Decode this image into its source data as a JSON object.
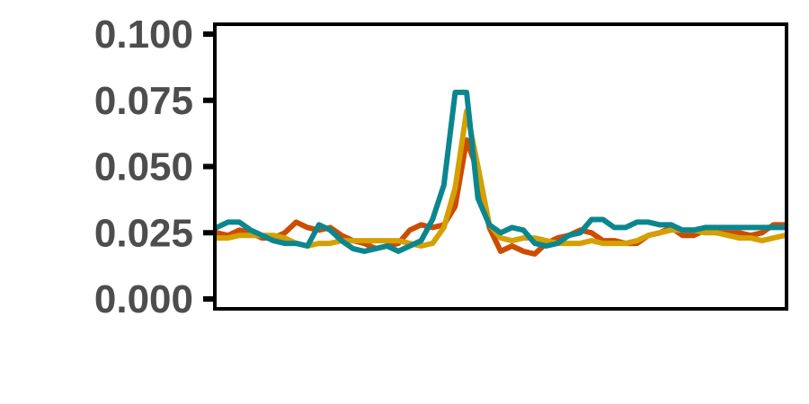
{
  "chart_data": {
    "type": "line",
    "title": "",
    "xlabel": "",
    "ylabel": "",
    "ylim": [
      0.0,
      0.1
    ],
    "xlim": [
      0,
      100
    ],
    "y_ticks": [
      0.0,
      0.025,
      0.05,
      0.075,
      0.1
    ],
    "y_tick_labels": [
      "0.000",
      "0.025",
      "0.050",
      "0.075",
      "0.100"
    ],
    "x_tick_labels": [],
    "grid": false,
    "legend": "none",
    "series": [
      {
        "color": "#cc4c02",
        "x": [
          0,
          2,
          4,
          6,
          8,
          10,
          12,
          14,
          16,
          18,
          20,
          22,
          24,
          26,
          28,
          30,
          32,
          34,
          36,
          38,
          40,
          42,
          44,
          46,
          48,
          50,
          52,
          54,
          56,
          58,
          60,
          62,
          64,
          66,
          68,
          70,
          72,
          74,
          76,
          78,
          80,
          82,
          84,
          86,
          88,
          90,
          92,
          94,
          96,
          98,
          100
        ],
        "values": [
          0.025,
          0.024,
          0.026,
          0.025,
          0.023,
          0.023,
          0.025,
          0.029,
          0.027,
          0.026,
          0.027,
          0.024,
          0.022,
          0.021,
          0.019,
          0.02,
          0.021,
          0.026,
          0.028,
          0.027,
          0.028,
          0.035,
          0.06,
          0.048,
          0.027,
          0.018,
          0.02,
          0.018,
          0.017,
          0.021,
          0.023,
          0.024,
          0.026,
          0.025,
          0.022,
          0.022,
          0.021,
          0.021,
          0.024,
          0.025,
          0.027,
          0.024,
          0.024,
          0.026,
          0.025,
          0.025,
          0.025,
          0.024,
          0.025,
          0.028,
          0.028
        ]
      },
      {
        "color": "#d4a003",
        "x": [
          0,
          2,
          4,
          6,
          8,
          10,
          12,
          14,
          16,
          18,
          20,
          22,
          24,
          26,
          28,
          30,
          32,
          34,
          36,
          38,
          40,
          42,
          44,
          46,
          48,
          50,
          52,
          54,
          56,
          58,
          60,
          62,
          64,
          66,
          68,
          70,
          72,
          74,
          76,
          78,
          80,
          82,
          84,
          86,
          88,
          90,
          92,
          94,
          96,
          98,
          100
        ],
        "values": [
          0.023,
          0.023,
          0.024,
          0.024,
          0.024,
          0.024,
          0.023,
          0.021,
          0.02,
          0.021,
          0.021,
          0.022,
          0.022,
          0.022,
          0.022,
          0.022,
          0.022,
          0.021,
          0.02,
          0.021,
          0.027,
          0.042,
          0.071,
          0.05,
          0.028,
          0.023,
          0.022,
          0.023,
          0.023,
          0.022,
          0.021,
          0.021,
          0.021,
          0.022,
          0.021,
          0.021,
          0.021,
          0.022,
          0.024,
          0.025,
          0.026,
          0.026,
          0.026,
          0.025,
          0.025,
          0.024,
          0.023,
          0.023,
          0.022,
          0.023,
          0.024
        ]
      },
      {
        "color": "#0b868e",
        "x": [
          0,
          2,
          4,
          6,
          8,
          10,
          12,
          14,
          16,
          18,
          20,
          22,
          24,
          26,
          28,
          30,
          32,
          34,
          36,
          38,
          40,
          42,
          44,
          46,
          48,
          50,
          52,
          54,
          56,
          58,
          60,
          62,
          64,
          66,
          68,
          70,
          72,
          74,
          76,
          78,
          80,
          82,
          84,
          86,
          88,
          90,
          92,
          94,
          96,
          98,
          100
        ],
        "values": [
          0.027,
          0.029,
          0.029,
          0.026,
          0.024,
          0.022,
          0.021,
          0.021,
          0.02,
          0.028,
          0.026,
          0.022,
          0.019,
          0.018,
          0.019,
          0.02,
          0.018,
          0.02,
          0.022,
          0.03,
          0.043,
          0.078,
          0.078,
          0.038,
          0.028,
          0.025,
          0.027,
          0.026,
          0.021,
          0.02,
          0.021,
          0.024,
          0.025,
          0.03,
          0.03,
          0.027,
          0.027,
          0.029,
          0.029,
          0.028,
          0.028,
          0.026,
          0.026,
          0.027,
          0.027,
          0.027,
          0.027,
          0.027,
          0.027,
          0.027,
          0.027
        ]
      }
    ]
  }
}
